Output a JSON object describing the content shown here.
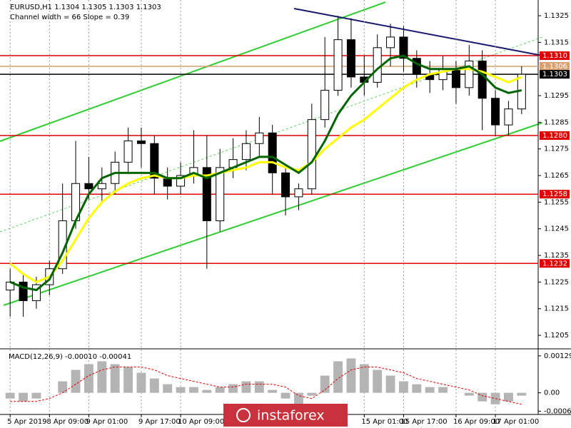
{
  "chart_data": [
    {
      "type": "candlestick",
      "title": "EURUSD,H1  1.1304 1.1305 1.1303 1.1303",
      "subtitle": "Channel width = 66 Slope = 0.39",
      "categories": [
        "5 Apr 2019",
        null,
        null,
        "8 Apr 09:00",
        null,
        null,
        "9 Apr 01:00",
        null,
        null,
        null,
        "9 Apr 17:00",
        null,
        null,
        "10 Apr 09:00",
        null,
        null,
        null,
        null,
        null,
        null,
        null,
        null,
        null,
        null,
        null,
        null,
        null,
        "15 Apr 01:00",
        null,
        null,
        "15 Apr 17:00",
        null,
        null,
        null,
        "16 Apr 09:00",
        null,
        null,
        "17 Apr 01:00",
        null,
        null
      ],
      "open": [
        1.1222,
        1.1225,
        1.1218,
        1.1224,
        1.123,
        1.1248,
        1.1262,
        1.126,
        1.1262,
        1.127,
        1.1278,
        1.1277,
        1.1264,
        1.1261,
        1.1265,
        1.1268,
        1.1248,
        1.1268,
        1.1271,
        1.1277,
        1.1281,
        1.1266,
        1.1257,
        1.126,
        1.1286,
        1.1297,
        1.1316,
        1.1302,
        1.13,
        1.1313,
        1.1317,
        1.1309,
        1.1303,
        1.1301,
        1.1305,
        1.1298,
        1.1308,
        1.1294,
        1.1284,
        1.129
      ],
      "high": [
        1.123,
        1.1228,
        1.1227,
        1.1233,
        1.1262,
        1.1278,
        1.1272,
        1.1268,
        1.1274,
        1.1283,
        1.1283,
        1.128,
        1.1268,
        1.127,
        1.1282,
        1.128,
        1.1275,
        1.1279,
        1.1282,
        1.1287,
        1.1284,
        1.1268,
        1.1262,
        1.1292,
        1.1317,
        1.1325,
        1.1324,
        1.131,
        1.1318,
        1.1322,
        1.1321,
        1.1312,
        1.1308,
        1.131,
        1.1308,
        1.1314,
        1.1312,
        1.1297,
        1.1293,
        1.1306
      ],
      "low": [
        1.1212,
        1.1212,
        1.1215,
        1.122,
        1.1228,
        1.1245,
        1.1256,
        1.1255,
        1.1258,
        1.1266,
        1.1268,
        1.1258,
        1.1256,
        1.1258,
        1.1262,
        1.123,
        1.1244,
        1.1264,
        1.1267,
        1.1272,
        1.1258,
        1.125,
        1.1252,
        1.1258,
        1.1283,
        1.1295,
        1.1298,
        1.1295,
        1.1298,
        1.1306,
        1.1304,
        1.1298,
        1.1296,
        1.1297,
        1.1292,
        1.1295,
        1.1282,
        1.128,
        1.128,
        1.1288
      ],
      "close": [
        1.1225,
        1.1218,
        1.1224,
        1.123,
        1.1248,
        1.1262,
        1.126,
        1.1262,
        1.127,
        1.1278,
        1.1277,
        1.1264,
        1.1261,
        1.1265,
        1.1268,
        1.1248,
        1.1268,
        1.1271,
        1.1277,
        1.1281,
        1.1266,
        1.1257,
        1.126,
        1.1286,
        1.1297,
        1.1316,
        1.1302,
        1.13,
        1.1313,
        1.1317,
        1.1309,
        1.1303,
        1.1301,
        1.1305,
        1.1298,
        1.1308,
        1.1294,
        1.1284,
        1.129,
        1.1303
      ],
      "overlays": [
        {
          "color": "#ffff00",
          "values": [
            1.1232,
            1.1228,
            1.1225,
            1.1227,
            1.1233,
            1.1241,
            1.1249,
            1.1255,
            1.1259,
            1.1262,
            1.1264,
            1.1265,
            1.1264,
            1.1264,
            1.1265,
            1.1265,
            1.1266,
            1.1267,
            1.1268,
            1.127,
            1.127,
            1.1268,
            1.1267,
            1.127,
            1.1275,
            1.1279,
            1.1283,
            1.1286,
            1.129,
            1.1294,
            1.1298,
            1.1301,
            1.1303,
            1.1304,
            1.1305,
            1.1305,
            1.1304,
            1.1302,
            1.13,
            1.1302
          ]
        },
        {
          "color": "#006400",
          "values": [
            1.1225,
            1.1223,
            1.1222,
            1.1226,
            1.1236,
            1.1248,
            1.1258,
            1.1264,
            1.1266,
            1.1266,
            1.1266,
            1.1266,
            1.1264,
            1.1264,
            1.1266,
            1.1264,
            1.1266,
            1.1268,
            1.127,
            1.1272,
            1.1272,
            1.1269,
            1.1266,
            1.127,
            1.1278,
            1.1288,
            1.1295,
            1.13,
            1.1305,
            1.1309,
            1.131,
            1.1307,
            1.1305,
            1.1305,
            1.1305,
            1.1306,
            1.1303,
            1.1298,
            1.1296,
            1.1297
          ]
        }
      ],
      "levels": [
        {
          "value": 1.131,
          "label": "1.1310",
          "color": "#e00000"
        },
        {
          "value": 1.1306,
          "label": "1.1306",
          "color": "#d9a070"
        },
        {
          "value": 1.1303,
          "label": "1.1303",
          "color": "#000000"
        },
        {
          "value": 1.128,
          "label": "1.1280",
          "color": "#e00000"
        },
        {
          "value": 1.1258,
          "label": "1.1258",
          "color": "#e00000"
        },
        {
          "value": 1.1232,
          "label": "1.1232",
          "color": "#e00000"
        }
      ],
      "ylim": [
        1.12002,
        1.13309
      ],
      "yticks": [
        1.1325,
        1.1315,
        1.1295,
        1.1285,
        1.1275,
        1.1265,
        1.1255,
        1.1245,
        1.1235,
        1.1225,
        1.1215,
        1.1205
      ],
      "grid": true
    },
    {
      "type": "macd",
      "title": "MACD(12,26,9) -0.00010 -0.00041",
      "histogram_color": "#b4b4b4",
      "signal_color": "#e00000",
      "histogram": [
        -0.0002,
        -0.0003,
        -0.0002,
        0,
        0.0004,
        0.0008,
        0.001,
        0.0011,
        0.001,
        0.0009,
        0.0007,
        0.0005,
        0.0003,
        0.0002,
        0.0002,
        0.0001,
        0.0002,
        0.0003,
        0.0004,
        0.0004,
        0.0001,
        -0.0002,
        -0.0004,
        -0.0001,
        0.0006,
        0.0011,
        0.0012,
        0.001,
        0.0008,
        0.0006,
        0.0004,
        0.0003,
        0.0002,
        0.0002,
        0,
        -0.0001,
        -0.0003,
        -0.0004,
        -0.0003,
        -0.0001
      ],
      "signal": [
        -0.0003,
        -0.0003,
        -0.0003,
        -0.0002,
        0,
        0.0003,
        0.0006,
        0.0008,
        0.0009,
        0.0009,
        0.0009,
        0.0008,
        0.0006,
        0.0005,
        0.0004,
        0.0003,
        0.0002,
        0.0002,
        0.0003,
        0.0003,
        0.0003,
        0.0002,
        -0.0001,
        -0.0002,
        0.0001,
        0.0005,
        0.0008,
        0.0009,
        0.0009,
        0.0008,
        0.0007,
        0.0005,
        0.0004,
        0.0003,
        0.0002,
        0.0001,
        -0.0001,
        -0.0002,
        -0.0003,
        -0.0004
      ],
      "ylim": [
        -0.00073,
        0.00151
      ],
      "yticks": [
        0.00129,
        {
          "value": 0,
          "label": "0.00"
        },
        -0.00064
      ]
    }
  ],
  "watermark": "instaforex"
}
